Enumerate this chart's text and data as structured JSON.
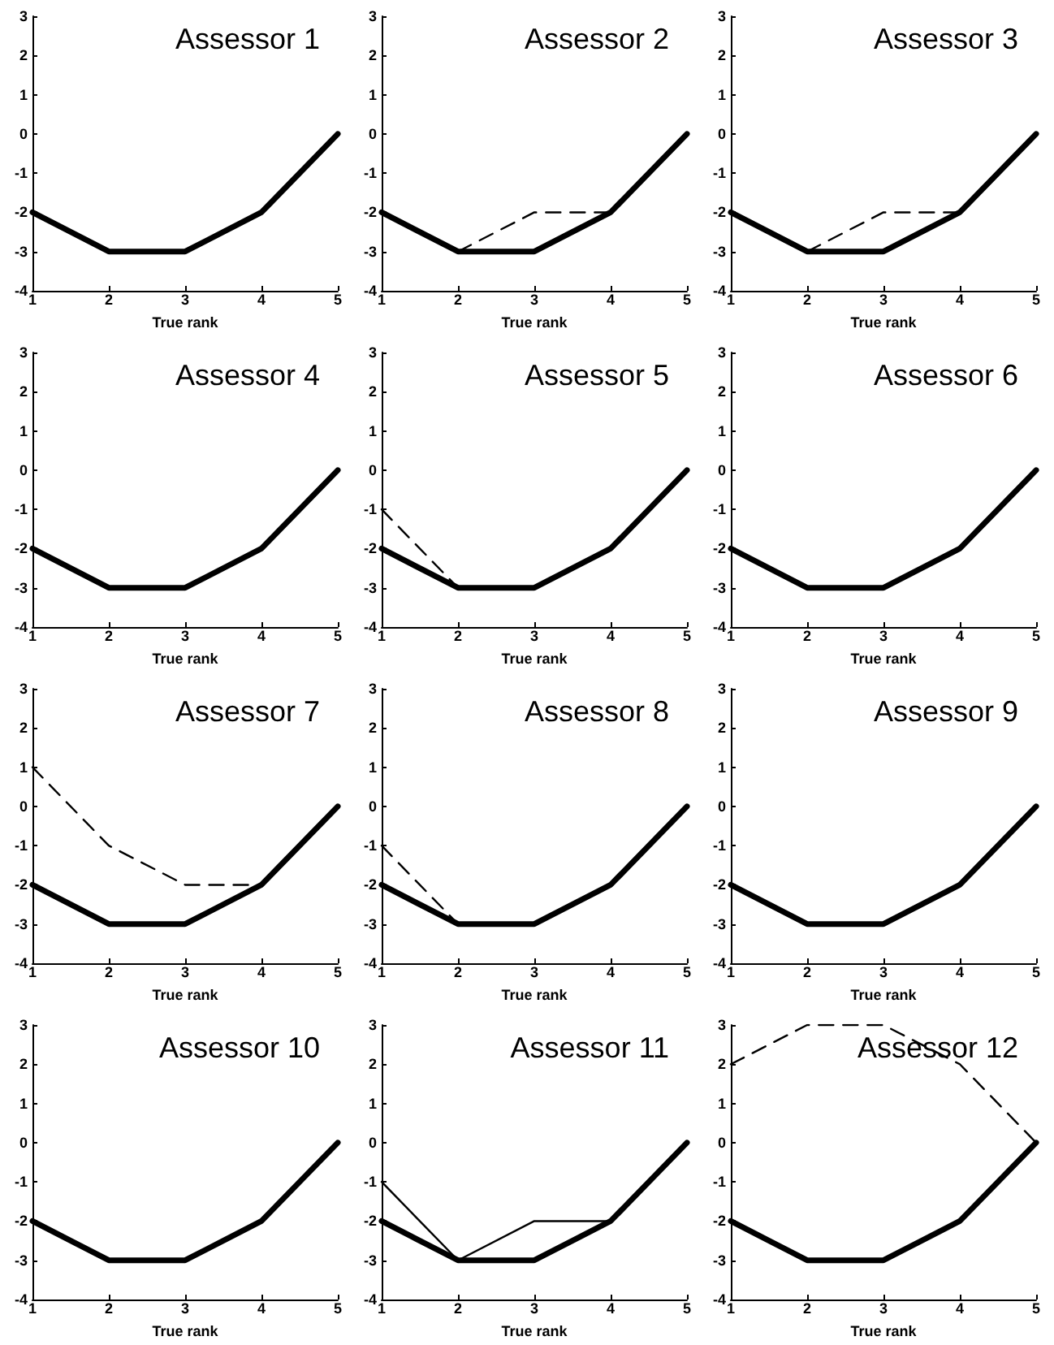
{
  "chart_data": [
    {
      "type": "line",
      "title": "Assessor 1",
      "xlabel": "True rank",
      "x": [
        1,
        2,
        3,
        4,
        5
      ],
      "xlim": [
        1,
        5
      ],
      "xticks": [
        1,
        2,
        3,
        4,
        5
      ],
      "ylim": [
        -4,
        3
      ],
      "yticks": [
        -4,
        -3,
        -2,
        -1,
        0,
        1,
        2,
        3
      ],
      "grid": false,
      "marker": "none",
      "series": [
        {
          "color": "#000000",
          "values": [
            -2,
            -3,
            -3,
            -2,
            0
          ],
          "line_style": "solid"
        }
      ]
    },
    {
      "type": "line",
      "title": "Assessor 2",
      "xlabel": "True rank",
      "x": [
        1,
        2,
        3,
        4,
        5
      ],
      "xlim": [
        1,
        5
      ],
      "xticks": [
        1,
        2,
        3,
        4,
        5
      ],
      "ylim": [
        -4,
        3
      ],
      "yticks": [
        -4,
        -3,
        -2,
        -1,
        0,
        1,
        2,
        3
      ],
      "grid": false,
      "marker": "none",
      "series": [
        {
          "color": "#000000",
          "values": [
            -2,
            -3,
            -3,
            -2,
            0
          ],
          "line_style": "solid"
        },
        {
          "color": "#000000",
          "values": [
            null,
            -3,
            -2,
            -2,
            null
          ],
          "line_style": "dashed"
        }
      ]
    },
    {
      "type": "line",
      "title": "Assessor 3",
      "xlabel": "True rank",
      "x": [
        1,
        2,
        3,
        4,
        5
      ],
      "xlim": [
        1,
        5
      ],
      "xticks": [
        1,
        2,
        3,
        4,
        5
      ],
      "ylim": [
        -4,
        3
      ],
      "yticks": [
        -4,
        -3,
        -2,
        -1,
        0,
        1,
        2,
        3
      ],
      "grid": false,
      "marker": "none",
      "series": [
        {
          "color": "#000000",
          "values": [
            -2,
            -3,
            -3,
            -2,
            0
          ],
          "line_style": "solid"
        },
        {
          "color": "#000000",
          "values": [
            null,
            -3,
            -2,
            -2,
            null
          ],
          "line_style": "dashed"
        }
      ]
    },
    {
      "type": "line",
      "title": "Assessor 4",
      "xlabel": "True rank",
      "x": [
        1,
        2,
        3,
        4,
        5
      ],
      "xlim": [
        1,
        5
      ],
      "xticks": [
        1,
        2,
        3,
        4,
        5
      ],
      "ylim": [
        -4,
        3
      ],
      "yticks": [
        -4,
        -3,
        -2,
        -1,
        0,
        1,
        2,
        3
      ],
      "grid": false,
      "marker": "none",
      "series": [
        {
          "color": "#000000",
          "values": [
            -2,
            -3,
            -3,
            -2,
            0
          ],
          "line_style": "solid"
        }
      ]
    },
    {
      "type": "line",
      "title": "Assessor 5",
      "xlabel": "True rank",
      "x": [
        1,
        2,
        3,
        4,
        5
      ],
      "xlim": [
        1,
        5
      ],
      "xticks": [
        1,
        2,
        3,
        4,
        5
      ],
      "ylim": [
        -4,
        3
      ],
      "yticks": [
        -4,
        -3,
        -2,
        -1,
        0,
        1,
        2,
        3
      ],
      "grid": false,
      "marker": "none",
      "series": [
        {
          "color": "#000000",
          "values": [
            -2,
            -3,
            -3,
            -2,
            0
          ],
          "line_style": "solid"
        },
        {
          "color": "#000000",
          "values": [
            -1,
            -3,
            null,
            null,
            null
          ],
          "line_style": "dashed"
        }
      ]
    },
    {
      "type": "line",
      "title": "Assessor 6",
      "xlabel": "True rank",
      "x": [
        1,
        2,
        3,
        4,
        5
      ],
      "xlim": [
        1,
        5
      ],
      "xticks": [
        1,
        2,
        3,
        4,
        5
      ],
      "ylim": [
        -4,
        3
      ],
      "yticks": [
        -4,
        -3,
        -2,
        -1,
        0,
        1,
        2,
        3
      ],
      "grid": false,
      "marker": "none",
      "series": [
        {
          "color": "#000000",
          "values": [
            -2,
            -3,
            -3,
            -2,
            0
          ],
          "line_style": "solid"
        }
      ]
    },
    {
      "type": "line",
      "title": "Assessor 7",
      "xlabel": "True rank",
      "x": [
        1,
        2,
        3,
        4,
        5
      ],
      "xlim": [
        1,
        5
      ],
      "xticks": [
        1,
        2,
        3,
        4,
        5
      ],
      "ylim": [
        -4,
        3
      ],
      "yticks": [
        -4,
        -3,
        -2,
        -1,
        0,
        1,
        2,
        3
      ],
      "grid": false,
      "marker": "none",
      "series": [
        {
          "color": "#000000",
          "values": [
            -2,
            -3,
            -3,
            -2,
            0
          ],
          "line_style": "solid"
        },
        {
          "color": "#000000",
          "values": [
            1,
            -1,
            -2,
            -2,
            null
          ],
          "line_style": "dashed"
        }
      ]
    },
    {
      "type": "line",
      "title": "Assessor 8",
      "xlabel": "True rank",
      "x": [
        1,
        2,
        3,
        4,
        5
      ],
      "xlim": [
        1,
        5
      ],
      "xticks": [
        1,
        2,
        3,
        4,
        5
      ],
      "ylim": [
        -4,
        3
      ],
      "yticks": [
        -4,
        -3,
        -2,
        -1,
        0,
        1,
        2,
        3
      ],
      "grid": false,
      "marker": "none",
      "series": [
        {
          "color": "#000000",
          "values": [
            -2,
            -3,
            -3,
            -2,
            0
          ],
          "line_style": "solid"
        },
        {
          "color": "#000000",
          "values": [
            -1,
            -3,
            null,
            null,
            null
          ],
          "line_style": "dashed"
        }
      ]
    },
    {
      "type": "line",
      "title": "Assessor 9",
      "xlabel": "True rank",
      "x": [
        1,
        2,
        3,
        4,
        5
      ],
      "xlim": [
        1,
        5
      ],
      "xticks": [
        1,
        2,
        3,
        4,
        5
      ],
      "ylim": [
        -4,
        3
      ],
      "yticks": [
        -4,
        -3,
        -2,
        -1,
        0,
        1,
        2,
        3
      ],
      "grid": false,
      "marker": "none",
      "series": [
        {
          "color": "#000000",
          "values": [
            -2,
            -3,
            -3,
            -2,
            0
          ],
          "line_style": "solid"
        }
      ]
    },
    {
      "type": "line",
      "title": "Assessor 10",
      "xlabel": "True rank",
      "x": [
        1,
        2,
        3,
        4,
        5
      ],
      "xlim": [
        1,
        5
      ],
      "xticks": [
        1,
        2,
        3,
        4,
        5
      ],
      "ylim": [
        -4,
        3
      ],
      "yticks": [
        -4,
        -3,
        -2,
        -1,
        0,
        1,
        2,
        3
      ],
      "grid": false,
      "marker": "none",
      "series": [
        {
          "color": "#000000",
          "values": [
            -2,
            -3,
            -3,
            -2,
            0
          ],
          "line_style": "solid"
        }
      ]
    },
    {
      "type": "line",
      "title": "Assessor 11",
      "xlabel": "True rank",
      "x": [
        1,
        2,
        3,
        4,
        5
      ],
      "xlim": [
        1,
        5
      ],
      "xticks": [
        1,
        2,
        3,
        4,
        5
      ],
      "ylim": [
        -4,
        3
      ],
      "yticks": [
        -4,
        -3,
        -2,
        -1,
        0,
        1,
        2,
        3
      ],
      "grid": false,
      "marker": "none",
      "series": [
        {
          "color": "#000000",
          "values": [
            -2,
            -3,
            -3,
            -2,
            0
          ],
          "line_style": "solid"
        },
        {
          "color": "#000000",
          "values": [
            -1,
            -3,
            -2,
            -2,
            null
          ],
          "line_style": "solid"
        }
      ]
    },
    {
      "type": "line",
      "title": "Assessor 12",
      "xlabel": "True rank",
      "x": [
        1,
        2,
        3,
        4,
        5
      ],
      "xlim": [
        1,
        5
      ],
      "xticks": [
        1,
        2,
        3,
        4,
        5
      ],
      "ylim": [
        -4,
        3
      ],
      "yticks": [
        -4,
        -3,
        -2,
        -1,
        0,
        1,
        2,
        3
      ],
      "grid": false,
      "marker": "none",
      "series": [
        {
          "color": "#000000",
          "values": [
            -2,
            -3,
            -3,
            -2,
            0
          ],
          "line_style": "solid"
        },
        {
          "color": "#000000",
          "values": [
            2,
            3,
            3,
            2,
            0
          ],
          "line_style": "dashed"
        }
      ]
    }
  ]
}
